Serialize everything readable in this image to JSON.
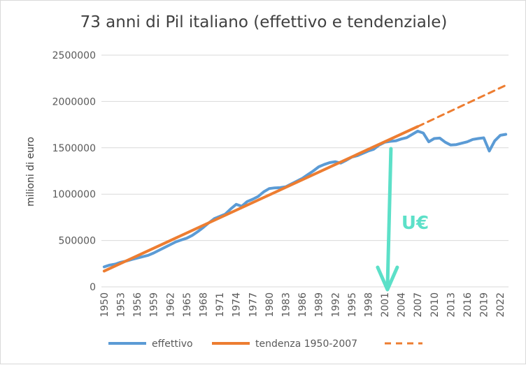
{
  "chart_data": {
    "type": "line",
    "title": "73 anni di Pil italiano (effettivo e tendenziale)",
    "ylabel": "milioni di euro",
    "xlabel": "",
    "ylim": [
      0,
      2500000
    ],
    "yticks": [
      0,
      500000,
      1000000,
      1500000,
      2000000,
      2500000
    ],
    "ytick_labels": [
      "0",
      "500000",
      "1000000",
      "1500000",
      "2000000",
      "2500000"
    ],
    "xlim": [
      1950,
      2023
    ],
    "xticks": [
      1950,
      1953,
      1956,
      1959,
      1962,
      1965,
      1968,
      1971,
      1974,
      1977,
      1980,
      1983,
      1986,
      1989,
      1992,
      1995,
      1998,
      2001,
      2004,
      2007,
      2010,
      2013,
      2016,
      2019,
      2022
    ],
    "grid": true,
    "legend": "bottom",
    "series": [
      {
        "name": "effettivo",
        "color": "#5b9bd5",
        "style": "solid",
        "x": [
          1950,
          1951,
          1952,
          1953,
          1954,
          1955,
          1956,
          1957,
          1958,
          1959,
          1960,
          1961,
          1962,
          1963,
          1964,
          1965,
          1966,
          1967,
          1968,
          1969,
          1970,
          1971,
          1972,
          1973,
          1974,
          1975,
          1976,
          1977,
          1978,
          1979,
          1980,
          1981,
          1982,
          1983,
          1984,
          1985,
          1986,
          1987,
          1988,
          1989,
          1990,
          1991,
          1992,
          1993,
          1994,
          1995,
          1996,
          1997,
          1998,
          1999,
          2000,
          2001,
          2002,
          2003,
          2004,
          2005,
          2006,
          2007,
          2008,
          2009,
          2010,
          2011,
          2012,
          2013,
          2014,
          2015,
          2016,
          2017,
          2018,
          2019,
          2020,
          2021,
          2022,
          2023
        ],
        "values": [
          215000,
          235000,
          245000,
          265000,
          278000,
          295000,
          310000,
          325000,
          340000,
          365000,
          395000,
          425000,
          455000,
          485000,
          505000,
          525000,
          555000,
          595000,
          640000,
          690000,
          735000,
          760000,
          785000,
          840000,
          890000,
          870000,
          920000,
          945000,
          975000,
          1025000,
          1060000,
          1068000,
          1070000,
          1080000,
          1110000,
          1140000,
          1170000,
          1210000,
          1250000,
          1295000,
          1320000,
          1340000,
          1350000,
          1335000,
          1365000,
          1400000,
          1415000,
          1440000,
          1465000,
          1485000,
          1530000,
          1560000,
          1570000,
          1575000,
          1595000,
          1610000,
          1645000,
          1680000,
          1660000,
          1565000,
          1600000,
          1605000,
          1560000,
          1530000,
          1535000,
          1550000,
          1565000,
          1590000,
          1600000,
          1608000,
          1465000,
          1575000,
          1635000,
          1645000
        ]
      },
      {
        "name": "tendenza 1950-2007",
        "color": "#ed7d31",
        "style": "solid",
        "x": [
          1950,
          2007
        ],
        "values": [
          170000,
          1730000
        ]
      },
      {
        "name": "",
        "color": "#ed7d31",
        "style": "dashed",
        "x": [
          2007,
          2023
        ],
        "values": [
          1730000,
          2175000
        ]
      }
    ],
    "annotation": {
      "text": "U€",
      "color": "#5ce0c8",
      "arrow_year": 2002
    }
  }
}
